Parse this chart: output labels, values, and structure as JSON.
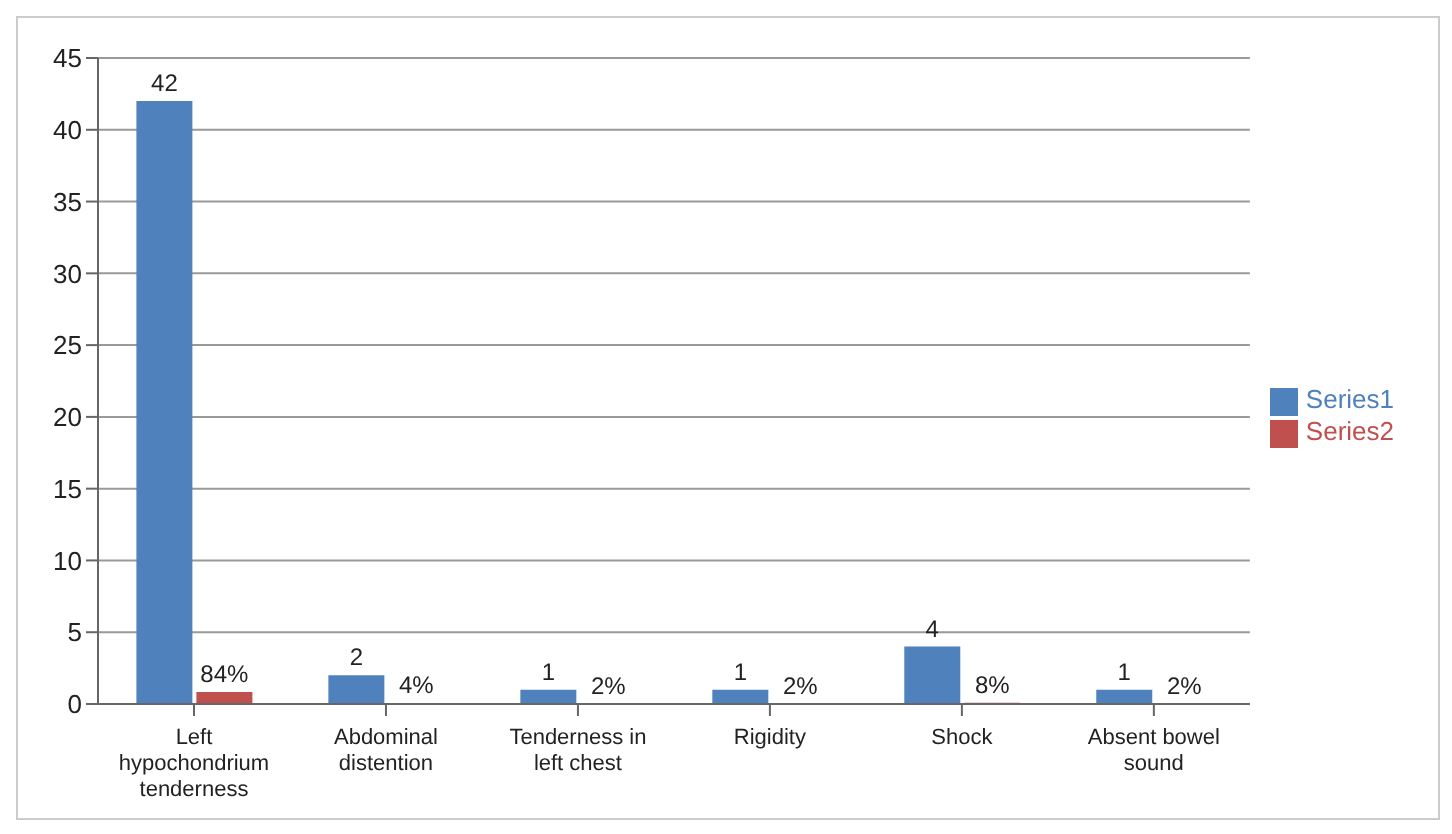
{
  "chart_data": {
    "type": "bar",
    "categories": [
      "Left hypochondrium tenderness",
      "Abdominal distention",
      "Tenderness in left chest",
      "Rigidity",
      "Shock",
      "Absent bowel sound"
    ],
    "series": [
      {
        "name": "Series1",
        "color": "#4f81bd",
        "values": [
          42,
          2,
          1,
          1,
          4,
          1
        ],
        "value_labels": [
          "42",
          "2",
          "1",
          "1",
          "4",
          "1"
        ]
      },
      {
        "name": "Series2",
        "color": "#c0504d",
        "values": [
          0.84,
          0.04,
          0.02,
          0.02,
          0.08,
          0.02
        ],
        "value_labels": [
          "84%",
          "4%",
          "2%",
          "2%",
          "8%",
          "2%"
        ]
      }
    ],
    "ylim": [
      0,
      45
    ],
    "yticks": [
      0,
      5,
      10,
      15,
      20,
      25,
      30,
      35,
      40,
      45
    ],
    "grid": "y",
    "legend": "right"
  }
}
